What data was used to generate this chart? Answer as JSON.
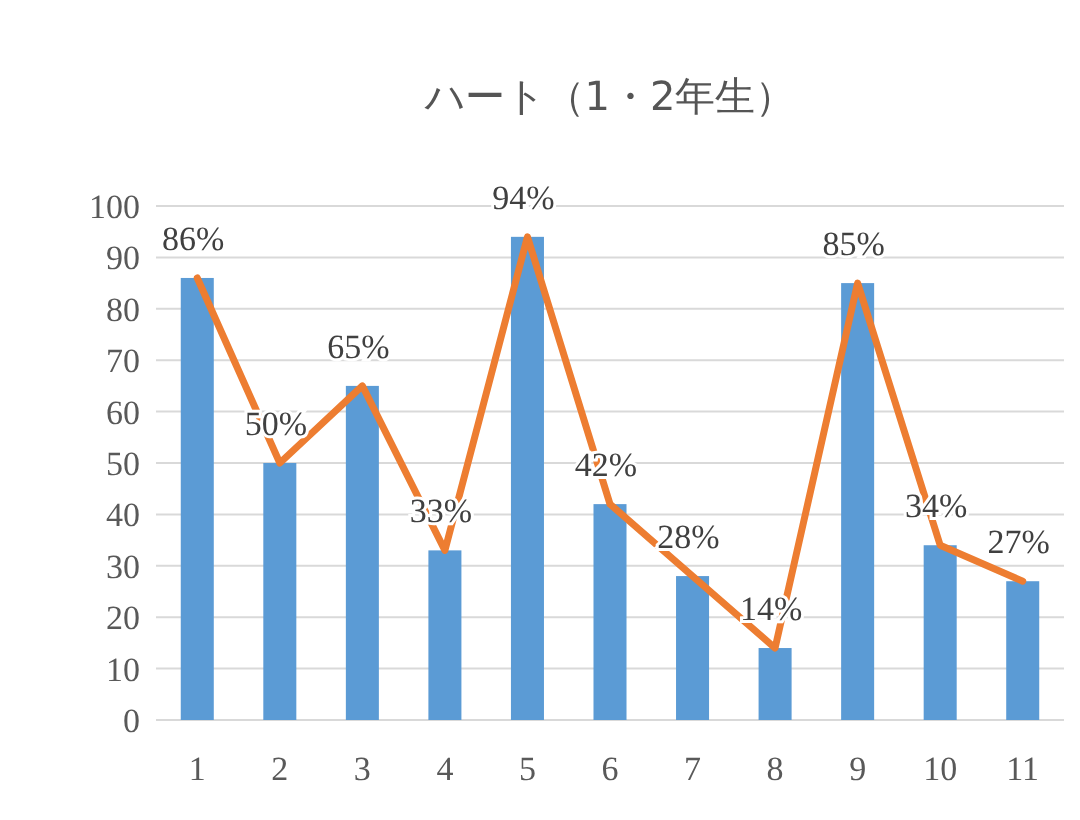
{
  "chart_data": {
    "type": "bar",
    "title": "ハート（1・2年生）",
    "categories": [
      "1",
      "2",
      "3",
      "4",
      "5",
      "6",
      "7",
      "8",
      "9",
      "10",
      "11"
    ],
    "ylim": [
      0,
      100
    ],
    "yticks": [
      0,
      10,
      20,
      30,
      40,
      50,
      60,
      70,
      80,
      90,
      100
    ],
    "grid": "y",
    "series": [
      {
        "color": "#5b9bd5",
        "values": [
          86,
          50,
          65,
          33,
          94,
          42,
          28,
          14,
          85,
          34,
          27
        ]
      },
      {
        "type": "line",
        "color": "#ed7d31",
        "values": [
          86,
          50,
          65,
          33,
          94,
          42,
          28,
          14,
          85,
          34,
          27
        ],
        "value_labels": [
          "86%",
          "50%",
          "65%",
          "33%",
          "94%",
          "42%",
          "28%",
          "14%",
          "85%",
          "34%",
          "27%"
        ]
      }
    ]
  }
}
